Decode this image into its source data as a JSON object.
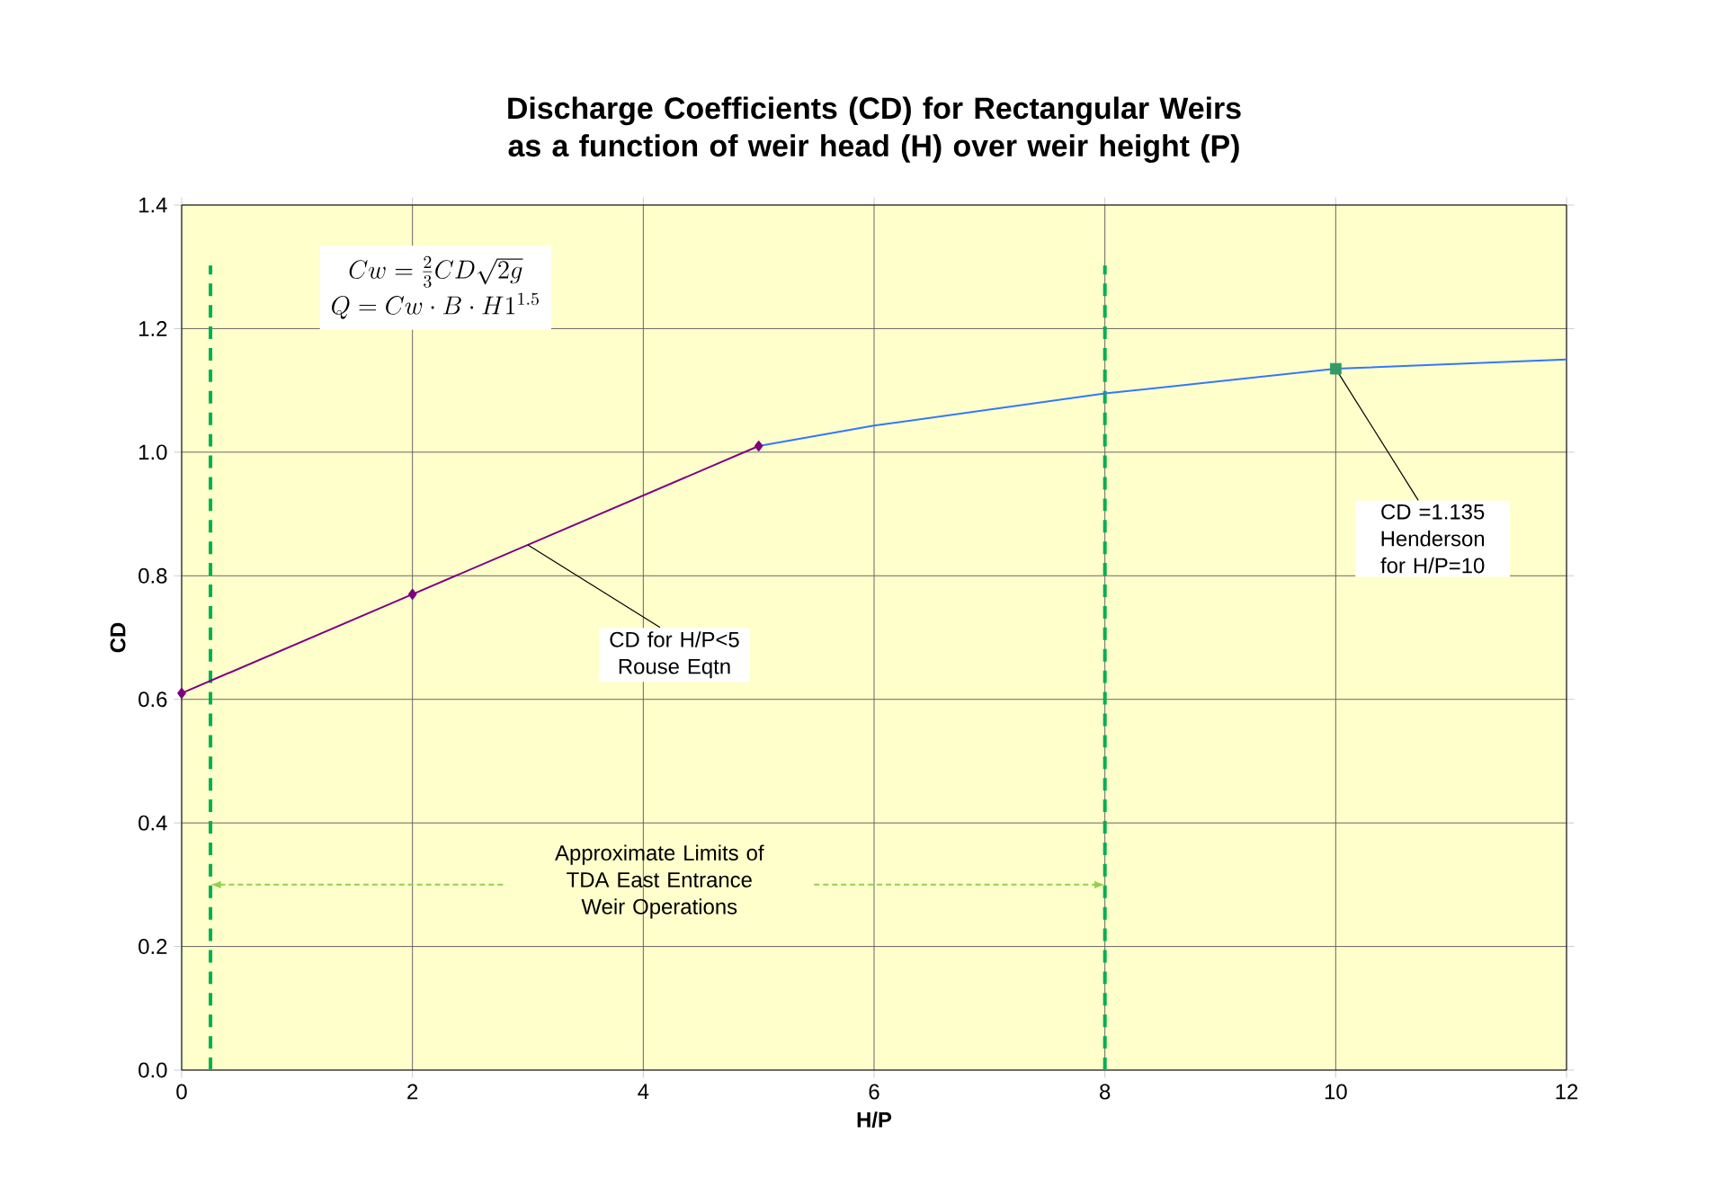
{
  "chart_data": {
    "type": "line",
    "title": "Discharge Coefficients (CD) for Rectangular Weirs as a function of weir head (H) over weir height (P)",
    "xlabel": "H/P",
    "ylabel": "CD",
    "xlim": [
      0,
      12
    ],
    "xticks": [
      0,
      2,
      4,
      6,
      8,
      10,
      12
    ],
    "ylim": [
      0,
      1.4
    ],
    "yticks": [
      {
        "value": 0,
        "label": "0.0"
      },
      {
        "value": 0.2,
        "label": "0.2"
      },
      {
        "value": 0.4,
        "label": "0.4"
      },
      {
        "value": 0.6,
        "label": "0.6"
      },
      {
        "value": 0.8,
        "label": "0.8"
      },
      {
        "value": 1.0,
        "label": "1.0"
      },
      {
        "value": 1.2,
        "label": "1.2"
      },
      {
        "value": 1.4,
        "label": "1.4"
      }
    ],
    "grid": true,
    "series": [
      {
        "color": "#7f007f",
        "marker": "diamond",
        "x": [
          0,
          2,
          5
        ],
        "values": [
          0.61,
          0.77,
          1.01
        ]
      },
      {
        "color": "#3377ff",
        "marker": "none",
        "x": [
          5,
          6,
          8,
          10,
          12
        ],
        "values": [
          1.01,
          1.043,
          1.095,
          1.135,
          1.15
        ]
      },
      {
        "type": "scatter",
        "color": "#339966",
        "marker": "square",
        "x": [
          10
        ],
        "values": [
          1.135
        ]
      }
    ],
    "ref_lines": [
      {
        "axis": "x",
        "value": 0.25,
        "color": "#00b050",
        "line_style": "dashed"
      },
      {
        "axis": "x",
        "value": 8,
        "color": "#00b050",
        "line_style": "dashed"
      }
    ],
    "annotations": [
      "Cw = \\frac{2}{3}CD\\sqrt{2g}",
      "Q = Cw \\cdot B \\cdot H1^{1.5}",
      {
        "text": "CD for H/P<5 Rouse Eqtn",
        "x": 3,
        "y": 0.85
      },
      {
        "text": "CD =1.135 Henderson for H/P=10",
        "x": 10,
        "y": 1.135
      },
      "Approximate Limits of TDA East Entrance Weir Operations"
    ]
  }
}
